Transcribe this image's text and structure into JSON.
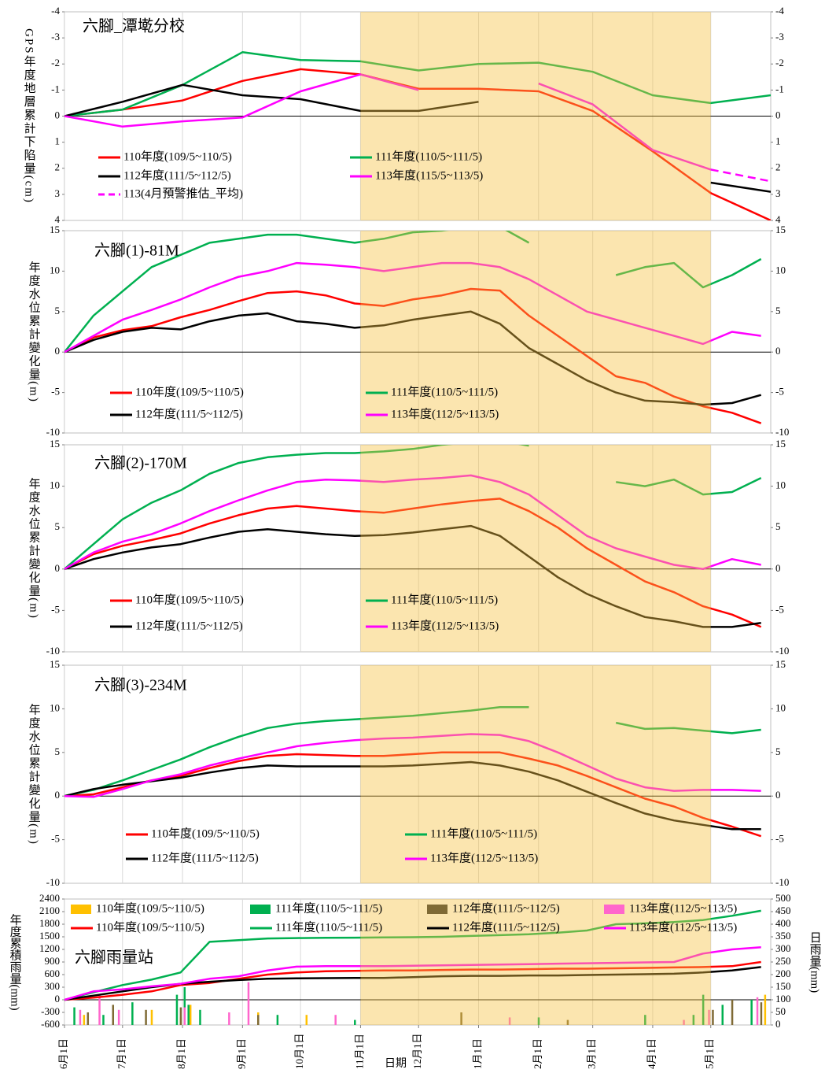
{
  "chart_data": [
    {
      "type": "line",
      "title": "六腳_潭墘分校",
      "ylabel": "GPS年度地層累計下陷量(cm)",
      "x": [
        0,
        30,
        61,
        92,
        122,
        153,
        183,
        214,
        245,
        273,
        304,
        334,
        365
      ],
      "xlim": [
        0,
        365
      ],
      "ylim": [
        -4,
        4
      ],
      "yticks": [
        -4,
        -3,
        -2,
        -1,
        0,
        1,
        2,
        3,
        4
      ],
      "y2lim": [
        -4,
        4
      ],
      "y2ticks": [
        -4,
        -3,
        -2,
        -1,
        0,
        1,
        2,
        3,
        4
      ],
      "yreverse": true,
      "highlight": [
        153,
        334
      ],
      "series": [
        {
          "name": "110年度(109/5~110/5)",
          "color": "#ff0000",
          "values": [
            0,
            -0.25,
            -0.6,
            -1.35,
            -1.8,
            -1.6,
            -1.05,
            -1.05,
            -0.95,
            -0.2,
            1.35,
            2.95,
            4.0
          ]
        },
        {
          "name": "111年度(110/5~111/5)",
          "color": "#00b050",
          "values": [
            0,
            -0.25,
            -1.2,
            -2.45,
            -2.15,
            -2.1,
            -1.75,
            -2.0,
            -2.05,
            -1.7,
            -0.8,
            -0.5,
            -0.8
          ]
        },
        {
          "name": "112年度(111/5~112/5)",
          "color": "#000000",
          "values": [
            0,
            -0.55,
            -1.2,
            -0.8,
            -0.65,
            -0.2,
            -0.2,
            -0.55,
            null,
            null,
            null,
            2.55,
            2.9
          ]
        },
        {
          "name": "113年度(115/5~113/5)",
          "color": "#ff00ff",
          "values": [
            0,
            0.4,
            0.2,
            0.05,
            -0.95,
            -1.6,
            -1.0,
            null,
            -1.25,
            -0.45,
            1.3,
            2.05,
            null
          ]
        },
        {
          "name": "113(4月預警推估_平均)",
          "color": "#ff00ff",
          "dashed": true,
          "values": [
            null,
            null,
            null,
            null,
            null,
            null,
            null,
            null,
            null,
            null,
            null,
            2.05,
            2.5
          ]
        }
      ]
    },
    {
      "type": "line",
      "title": "六腳(1)-81M",
      "ylabel": "年度水位累計變化量(m)",
      "x": [
        0,
        15,
        30,
        45,
        60,
        75,
        90,
        105,
        120,
        135,
        150,
        165,
        180,
        195,
        210,
        225,
        240,
        255,
        270,
        285,
        300,
        315,
        330,
        345,
        360
      ],
      "xlim": [
        0,
        365
      ],
      "ylim": [
        -10,
        15
      ],
      "yticks": [
        -10,
        -5,
        0,
        5,
        10,
        15
      ],
      "y2lim": [
        -10,
        15
      ],
      "y2ticks": [
        -10,
        -5,
        0,
        5,
        10,
        15
      ],
      "series": [
        {
          "name": "110年度(109/5~110/5)",
          "color": "#ff0000",
          "values": [
            0,
            1.8,
            2.7,
            3.2,
            4.3,
            5.2,
            6.3,
            7.3,
            7.5,
            7.0,
            6.0,
            5.7,
            6.5,
            7.0,
            7.8,
            7.6,
            4.5,
            2.0,
            -0.5,
            -3.0,
            -3.8,
            -5.5,
            -6.7,
            -7.5,
            -8.8
          ]
        },
        {
          "name": "111年度(110/5~111/5)",
          "color": "#00b050",
          "values": [
            0,
            4.5,
            7.5,
            10.5,
            12.0,
            13.5,
            14.0,
            14.5,
            14.5,
            14.0,
            13.5,
            14.0,
            14.8,
            15.0,
            15.5,
            15.5,
            13.5,
            null,
            null,
            9.5,
            10.5,
            11.0,
            8.0,
            9.5,
            11.5
          ]
        },
        {
          "name": "112年度(111/5~112/5)",
          "color": "#000000",
          "values": [
            0,
            1.5,
            2.5,
            3.0,
            2.8,
            3.8,
            4.5,
            4.8,
            3.8,
            3.5,
            3.0,
            3.3,
            4.0,
            4.5,
            5.0,
            3.5,
            0.5,
            -1.5,
            -3.5,
            -5.0,
            -6.0,
            -6.2,
            -6.5,
            -6.3,
            -5.3
          ]
        },
        {
          "name": "113年度(112/5~113/5)",
          "color": "#ff00ff",
          "values": [
            0,
            2.0,
            4.0,
            5.2,
            6.5,
            8.0,
            9.3,
            10.0,
            11.0,
            10.8,
            10.5,
            10.0,
            10.5,
            11.0,
            11.0,
            10.5,
            9.0,
            7.0,
            5.0,
            4.0,
            3.0,
            2.0,
            1.0,
            2.5,
            2.0
          ]
        }
      ]
    },
    {
      "type": "line",
      "title": "六腳(2)-170M",
      "ylabel": "年度水位累計變化量(m)",
      "x": [
        0,
        15,
        30,
        45,
        60,
        75,
        90,
        105,
        120,
        135,
        150,
        165,
        180,
        195,
        210,
        225,
        240,
        255,
        270,
        285,
        300,
        315,
        330,
        345,
        360
      ],
      "xlim": [
        0,
        365
      ],
      "ylim": [
        -10,
        15
      ],
      "yticks": [
        -10,
        -5,
        0,
        5,
        10,
        15
      ],
      "y2lim": [
        -10,
        15
      ],
      "y2ticks": [
        -10,
        -5,
        0,
        5,
        10,
        15
      ],
      "series": [
        {
          "name": "110年度(109/5~110/5)",
          "color": "#ff0000",
          "values": [
            0,
            1.8,
            2.8,
            3.5,
            4.3,
            5.5,
            6.5,
            7.3,
            7.6,
            7.3,
            7.0,
            6.8,
            7.3,
            7.8,
            8.2,
            8.5,
            7.0,
            5.0,
            2.5,
            0.5,
            -1.5,
            -2.8,
            -4.5,
            -5.5,
            -7.0
          ]
        },
        {
          "name": "111年度(110/5~111/5)",
          "color": "#00b050",
          "values": [
            0,
            3.0,
            6.0,
            8.0,
            9.5,
            11.5,
            12.8,
            13.5,
            13.8,
            14.0,
            14.0,
            14.2,
            14.5,
            15.0,
            15.3,
            15.5,
            14.9,
            null,
            null,
            10.5,
            10.0,
            10.8,
            9.0,
            9.3,
            11.0
          ]
        },
        {
          "name": "112年度(111/5~112/5)",
          "color": "#000000",
          "values": [
            0,
            1.2,
            2.0,
            2.6,
            3.0,
            3.8,
            4.5,
            4.8,
            4.5,
            4.2,
            4.0,
            4.1,
            4.4,
            4.8,
            5.2,
            4.0,
            1.5,
            -1.0,
            -3.0,
            -4.5,
            -5.8,
            -6.3,
            -7.0,
            -7.0,
            -6.5
          ]
        },
        {
          "name": "113年度(112/5~113/5)",
          "color": "#ff00ff",
          "values": [
            0,
            2.0,
            3.3,
            4.2,
            5.5,
            7.0,
            8.3,
            9.5,
            10.5,
            10.8,
            10.7,
            10.5,
            10.8,
            11.0,
            11.3,
            10.5,
            9.0,
            6.5,
            4.0,
            2.5,
            1.5,
            0.5,
            0,
            1.2,
            0.5
          ]
        }
      ]
    },
    {
      "type": "line",
      "title": "六腳(3)-234M",
      "ylabel": "年度水位累計變化量(m)",
      "x": [
        0,
        15,
        30,
        45,
        60,
        75,
        90,
        105,
        120,
        135,
        150,
        165,
        180,
        195,
        210,
        225,
        240,
        255,
        270,
        285,
        300,
        315,
        330,
        345,
        360
      ],
      "xlim": [
        0,
        365
      ],
      "ylim": [
        -10,
        15
      ],
      "yticks": [
        -10,
        -5,
        0,
        5,
        10,
        15
      ],
      "y2lim": [
        -10,
        15
      ],
      "y2ticks": [
        -10,
        -5,
        0,
        5,
        10,
        15
      ],
      "series": [
        {
          "name": "110年度(109/5~110/5)",
          "color": "#ff0000",
          "values": [
            0,
            0.2,
            1.0,
            1.8,
            2.3,
            3.2,
            4.0,
            4.6,
            4.8,
            4.7,
            4.6,
            4.6,
            4.8,
            5.0,
            5.0,
            5.0,
            4.3,
            3.5,
            2.3,
            1.0,
            -0.3,
            -1.2,
            -2.5,
            -3.5,
            -4.6
          ]
        },
        {
          "name": "111年度(110/5~111/5)",
          "color": "#00b050",
          "values": [
            0,
            0.7,
            1.8,
            3.0,
            4.2,
            5.6,
            6.8,
            7.8,
            8.3,
            8.6,
            8.8,
            9.0,
            9.2,
            9.5,
            9.8,
            10.2,
            10.2,
            null,
            null,
            8.4,
            7.7,
            7.8,
            7.5,
            7.2,
            7.6
          ]
        },
        {
          "name": "112年度(111/5~112/5)",
          "color": "#000000",
          "values": [
            0,
            0.8,
            1.3,
            1.7,
            2.1,
            2.7,
            3.2,
            3.5,
            3.4,
            3.4,
            3.4,
            3.4,
            3.5,
            3.7,
            3.9,
            3.5,
            2.8,
            1.8,
            0.5,
            -0.8,
            -2.0,
            -2.8,
            -3.3,
            -3.8,
            -3.8
          ]
        },
        {
          "name": "113年度(112/5~113/5)",
          "color": "#ff00ff",
          "values": [
            0,
            -0.1,
            0.8,
            1.8,
            2.5,
            3.5,
            4.3,
            5.0,
            5.7,
            6.1,
            6.4,
            6.6,
            6.7,
            6.9,
            7.1,
            7.0,
            6.3,
            5.0,
            3.5,
            2.0,
            1.0,
            0.6,
            0.7,
            0.7,
            0.6
          ]
        }
      ]
    },
    {
      "type": "combo",
      "title": "六腳雨量站",
      "ylabel": "年度累積雨量(mm)",
      "y2label": "日雨量(mm)",
      "xlabel": "日期",
      "x": [
        0,
        15,
        30,
        45,
        60,
        75,
        90,
        105,
        120,
        135,
        150,
        165,
        180,
        195,
        210,
        225,
        240,
        255,
        270,
        285,
        300,
        315,
        330,
        345,
        360
      ],
      "xlim": [
        0,
        365
      ],
      "xticks": [
        {
          "value": 0,
          "label": "6月1日"
        },
        {
          "value": 30,
          "label": "7月1日"
        },
        {
          "value": 61,
          "label": "8月1日"
        },
        {
          "value": 92,
          "label": "9月1日"
        },
        {
          "value": 122,
          "label": "10月1日"
        },
        {
          "value": 153,
          "label": "11月1日"
        },
        {
          "value": 183,
          "label": "12月1日"
        },
        {
          "value": 214,
          "label": "1月1日"
        },
        {
          "value": 245,
          "label": "2月1日"
        },
        {
          "value": 273,
          "label": "3月1日"
        },
        {
          "value": 304,
          "label": "4月1日"
        },
        {
          "value": 334,
          "label": "5月1日"
        }
      ],
      "ylim": [
        -600,
        2400
      ],
      "yticks": [
        -600,
        -300,
        0,
        300,
        600,
        900,
        1200,
        1500,
        1800,
        2100,
        2400
      ],
      "y2lim": [
        0,
        500
      ],
      "y2ticks": [
        0,
        50,
        100,
        150,
        200,
        250,
        300,
        350,
        400,
        450,
        500
      ],
      "series": [
        {
          "name": "110年度(109/5~110/5)",
          "type": "bar",
          "axis": "y2",
          "color": "#ffc000",
          "x": [
            10,
            45,
            60,
            65,
            100,
            125,
            330,
            362
          ],
          "values": [
            40,
            60,
            30,
            80,
            50,
            40,
            30,
            120
          ]
        },
        {
          "name": "111年度(110/5~111/5)",
          "type": "bar",
          "axis": "y2",
          "color": "#00b050",
          "x": [
            5,
            20,
            35,
            58,
            62,
            64,
            70,
            110,
            150,
            245,
            300,
            325,
            330,
            340,
            355
          ],
          "values": [
            70,
            40,
            90,
            120,
            150,
            80,
            60,
            40,
            20,
            30,
            40,
            40,
            120,
            80,
            100
          ]
        },
        {
          "name": "112年度(111/5~112/5)",
          "type": "bar",
          "axis": "y2",
          "color": "#7f6a35",
          "x": [
            12,
            25,
            42,
            60,
            100,
            205,
            260,
            335,
            345,
            360
          ],
          "values": [
            50,
            80,
            60,
            70,
            40,
            50,
            20,
            60,
            100,
            90
          ]
        },
        {
          "name": "113年度(112/5~113/5)",
          "type": "bar",
          "axis": "y2",
          "color": "#ff66cc",
          "x": [
            8,
            18,
            28,
            62,
            85,
            95,
            140,
            230,
            320,
            333,
            358
          ],
          "values": [
            60,
            120,
            60,
            70,
            50,
            170,
            40,
            30,
            20,
            60,
            110
          ]
        },
        {
          "name": "110年度(109/5~110/5)",
          "color": "#ff0000",
          "values": [
            0,
            50,
            120,
            200,
            350,
            400,
            500,
            600,
            650,
            680,
            690,
            700,
            700,
            710,
            720,
            720,
            730,
            740,
            740,
            750,
            760,
            770,
            780,
            800,
            900
          ]
        },
        {
          "name": "111年度(110/5~111/5)",
          "color": "#00b050",
          "values": [
            0,
            180,
            350,
            480,
            650,
            1380,
            1420,
            1460,
            1470,
            1475,
            1480,
            1485,
            1490,
            1500,
            1520,
            1540,
            1560,
            1600,
            1650,
            1800,
            1820,
            1850,
            1900,
            2000,
            2120
          ]
        },
        {
          "name": "112年度(111/5~112/5)",
          "color": "#000000",
          "values": [
            0,
            100,
            200,
            300,
            380,
            430,
            470,
            500,
            510,
            515,
            520,
            520,
            540,
            560,
            570,
            570,
            580,
            580,
            590,
            600,
            610,
            620,
            650,
            700,
            780
          ]
        },
        {
          "name": "113年度(112/5~113/5)",
          "color": "#ff00ff",
          "values": [
            0,
            200,
            250,
            320,
            380,
            500,
            560,
            700,
            790,
            800,
            800,
            800,
            810,
            820,
            830,
            840,
            850,
            860,
            870,
            880,
            890,
            900,
            1100,
            1200,
            1250
          ]
        }
      ]
    }
  ]
}
